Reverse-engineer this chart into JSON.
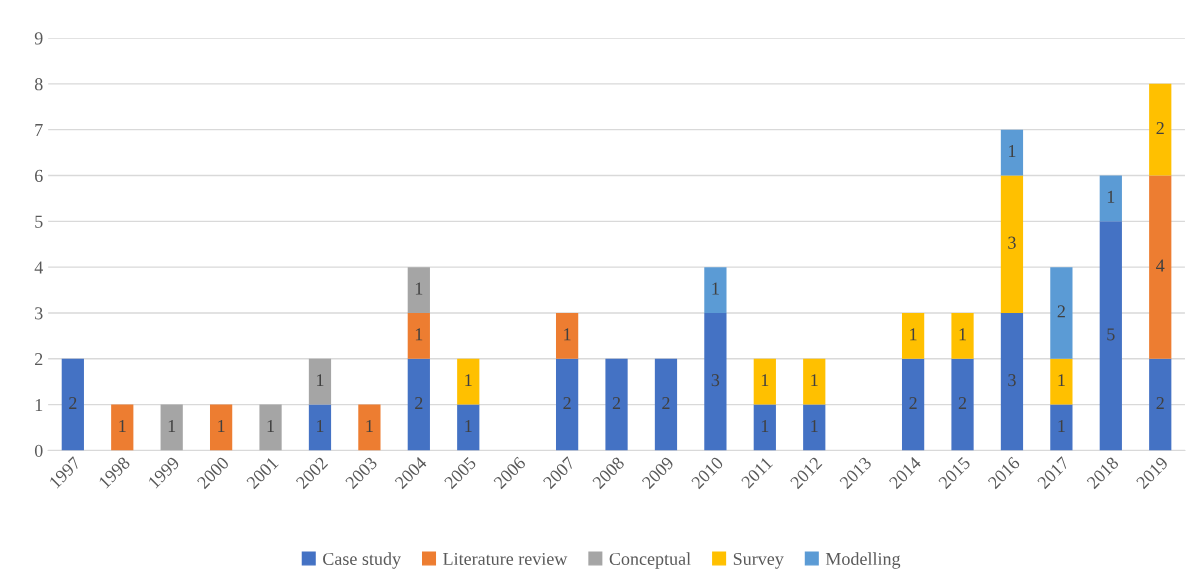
{
  "chart_data": {
    "type": "bar",
    "stacked": true,
    "data_labels": true,
    "grid": "y",
    "legend": "bottom",
    "categories": [
      "1997",
      "1998",
      "1999",
      "2000",
      "2001",
      "2002",
      "2003",
      "2004",
      "2005",
      "2006",
      "2007",
      "2008",
      "2009",
      "2010",
      "2011",
      "2012",
      "2013",
      "2014",
      "2015",
      "2016",
      "2017",
      "2018",
      "2019"
    ],
    "ylim": [
      0,
      9
    ],
    "yticks": [
      0,
      1,
      2,
      3,
      4,
      5,
      6,
      7,
      8,
      9
    ],
    "series": [
      {
        "name": "Case study",
        "color": "#4472c4",
        "values": [
          2,
          null,
          null,
          null,
          null,
          1,
          null,
          2,
          1,
          null,
          2,
          2,
          2,
          3,
          1,
          1,
          null,
          2,
          2,
          3,
          1,
          5,
          2
        ]
      },
      {
        "name": "Literature review",
        "color": "#ed7d31",
        "values": [
          null,
          1,
          null,
          1,
          null,
          null,
          1,
          1,
          null,
          null,
          1,
          null,
          null,
          null,
          null,
          null,
          null,
          null,
          null,
          null,
          null,
          null,
          4
        ]
      },
      {
        "name": "Conceptual",
        "color": "#a5a5a5",
        "values": [
          null,
          null,
          1,
          null,
          1,
          1,
          null,
          1,
          null,
          null,
          null,
          null,
          null,
          null,
          null,
          null,
          null,
          null,
          null,
          null,
          null,
          null,
          null
        ]
      },
      {
        "name": "Survey",
        "color": "#ffc000",
        "values": [
          null,
          null,
          null,
          null,
          null,
          null,
          null,
          null,
          1,
          null,
          null,
          null,
          null,
          null,
          1,
          1,
          null,
          1,
          1,
          3,
          1,
          null,
          2
        ]
      },
      {
        "name": "Modelling",
        "color": "#5b9bd5",
        "values": [
          null,
          null,
          null,
          null,
          null,
          null,
          null,
          null,
          null,
          null,
          null,
          null,
          null,
          1,
          null,
          null,
          null,
          null,
          null,
          1,
          2,
          1,
          null
        ]
      }
    ]
  }
}
